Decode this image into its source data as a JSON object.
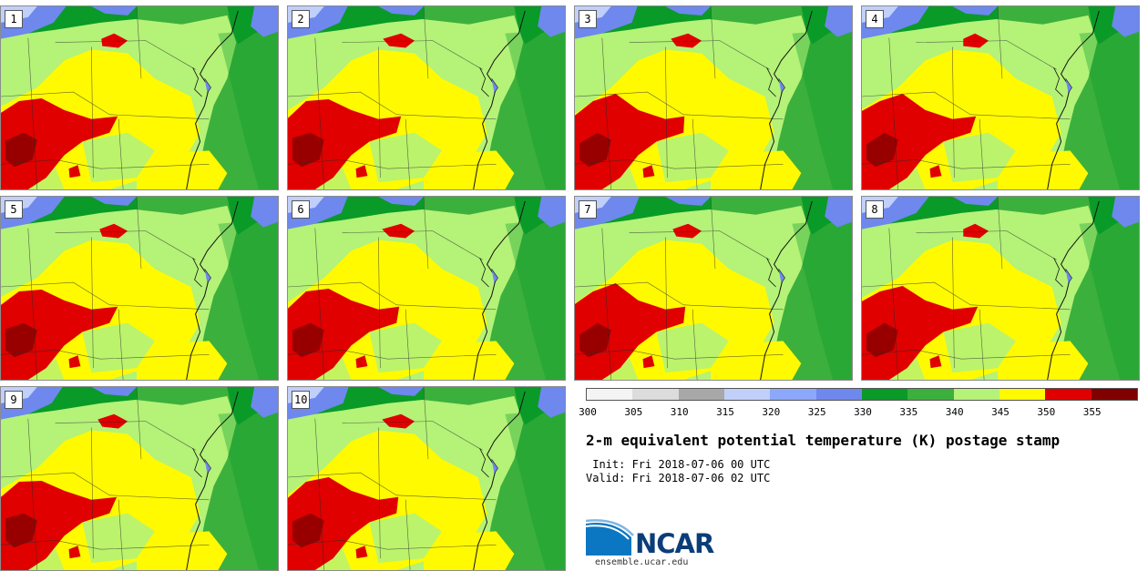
{
  "figure": {
    "title": "2-m equivalent potential temperature (K) postage stamp",
    "init": " Init: Fri 2018-07-06 00 UTC",
    "valid": "Valid: Fri 2018-07-06 02 UTC"
  },
  "members": [
    "1",
    "2",
    "3",
    "4",
    "5",
    "6",
    "7",
    "8",
    "9",
    "10"
  ],
  "colorbar": {
    "ticks": [
      "300",
      "305",
      "310",
      "315",
      "320",
      "325",
      "330",
      "335",
      "340",
      "345",
      "350",
      "355"
    ],
    "colors": [
      "#f4f4f4",
      "#dcdcdc",
      "#a8a8a8",
      "#c0d0fa",
      "#8ca8fa",
      "#6e88ee",
      "#0a9a28",
      "#3cb03c",
      "#b4f278",
      "#fffa00",
      "#e00000",
      "#800000"
    ]
  },
  "logo": {
    "name": "NCAR",
    "site": "ensemble.ucar.edu"
  },
  "map_colors": {
    "blue": "#6e88ee",
    "dark_green": "#0a9a28",
    "green": "#3cb03c",
    "light_green": "#b4f278",
    "yellow": "#fffa00",
    "red": "#e00000",
    "dark_red": "#800000"
  }
}
